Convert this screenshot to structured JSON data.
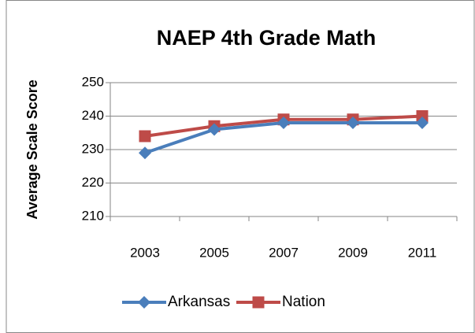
{
  "chart_data": {
    "type": "line",
    "title": "NAEP 4th Grade Math",
    "y_label": "Average Scale Score",
    "categories": [
      "2003",
      "2005",
      "2007",
      "2009",
      "2011"
    ],
    "series": [
      {
        "name": "Arkansas",
        "color": "#4a7ebb",
        "marker": "diamond",
        "values": [
          229,
          236,
          238,
          238,
          238
        ]
      },
      {
        "name": "Nation",
        "color": "#be4b48",
        "marker": "square",
        "values": [
          234,
          237,
          239,
          239,
          240
        ]
      }
    ],
    "ylim": [
      210,
      250
    ],
    "yticks": [
      210,
      220,
      230,
      240,
      250
    ],
    "grid": true,
    "legend": "bottom"
  }
}
